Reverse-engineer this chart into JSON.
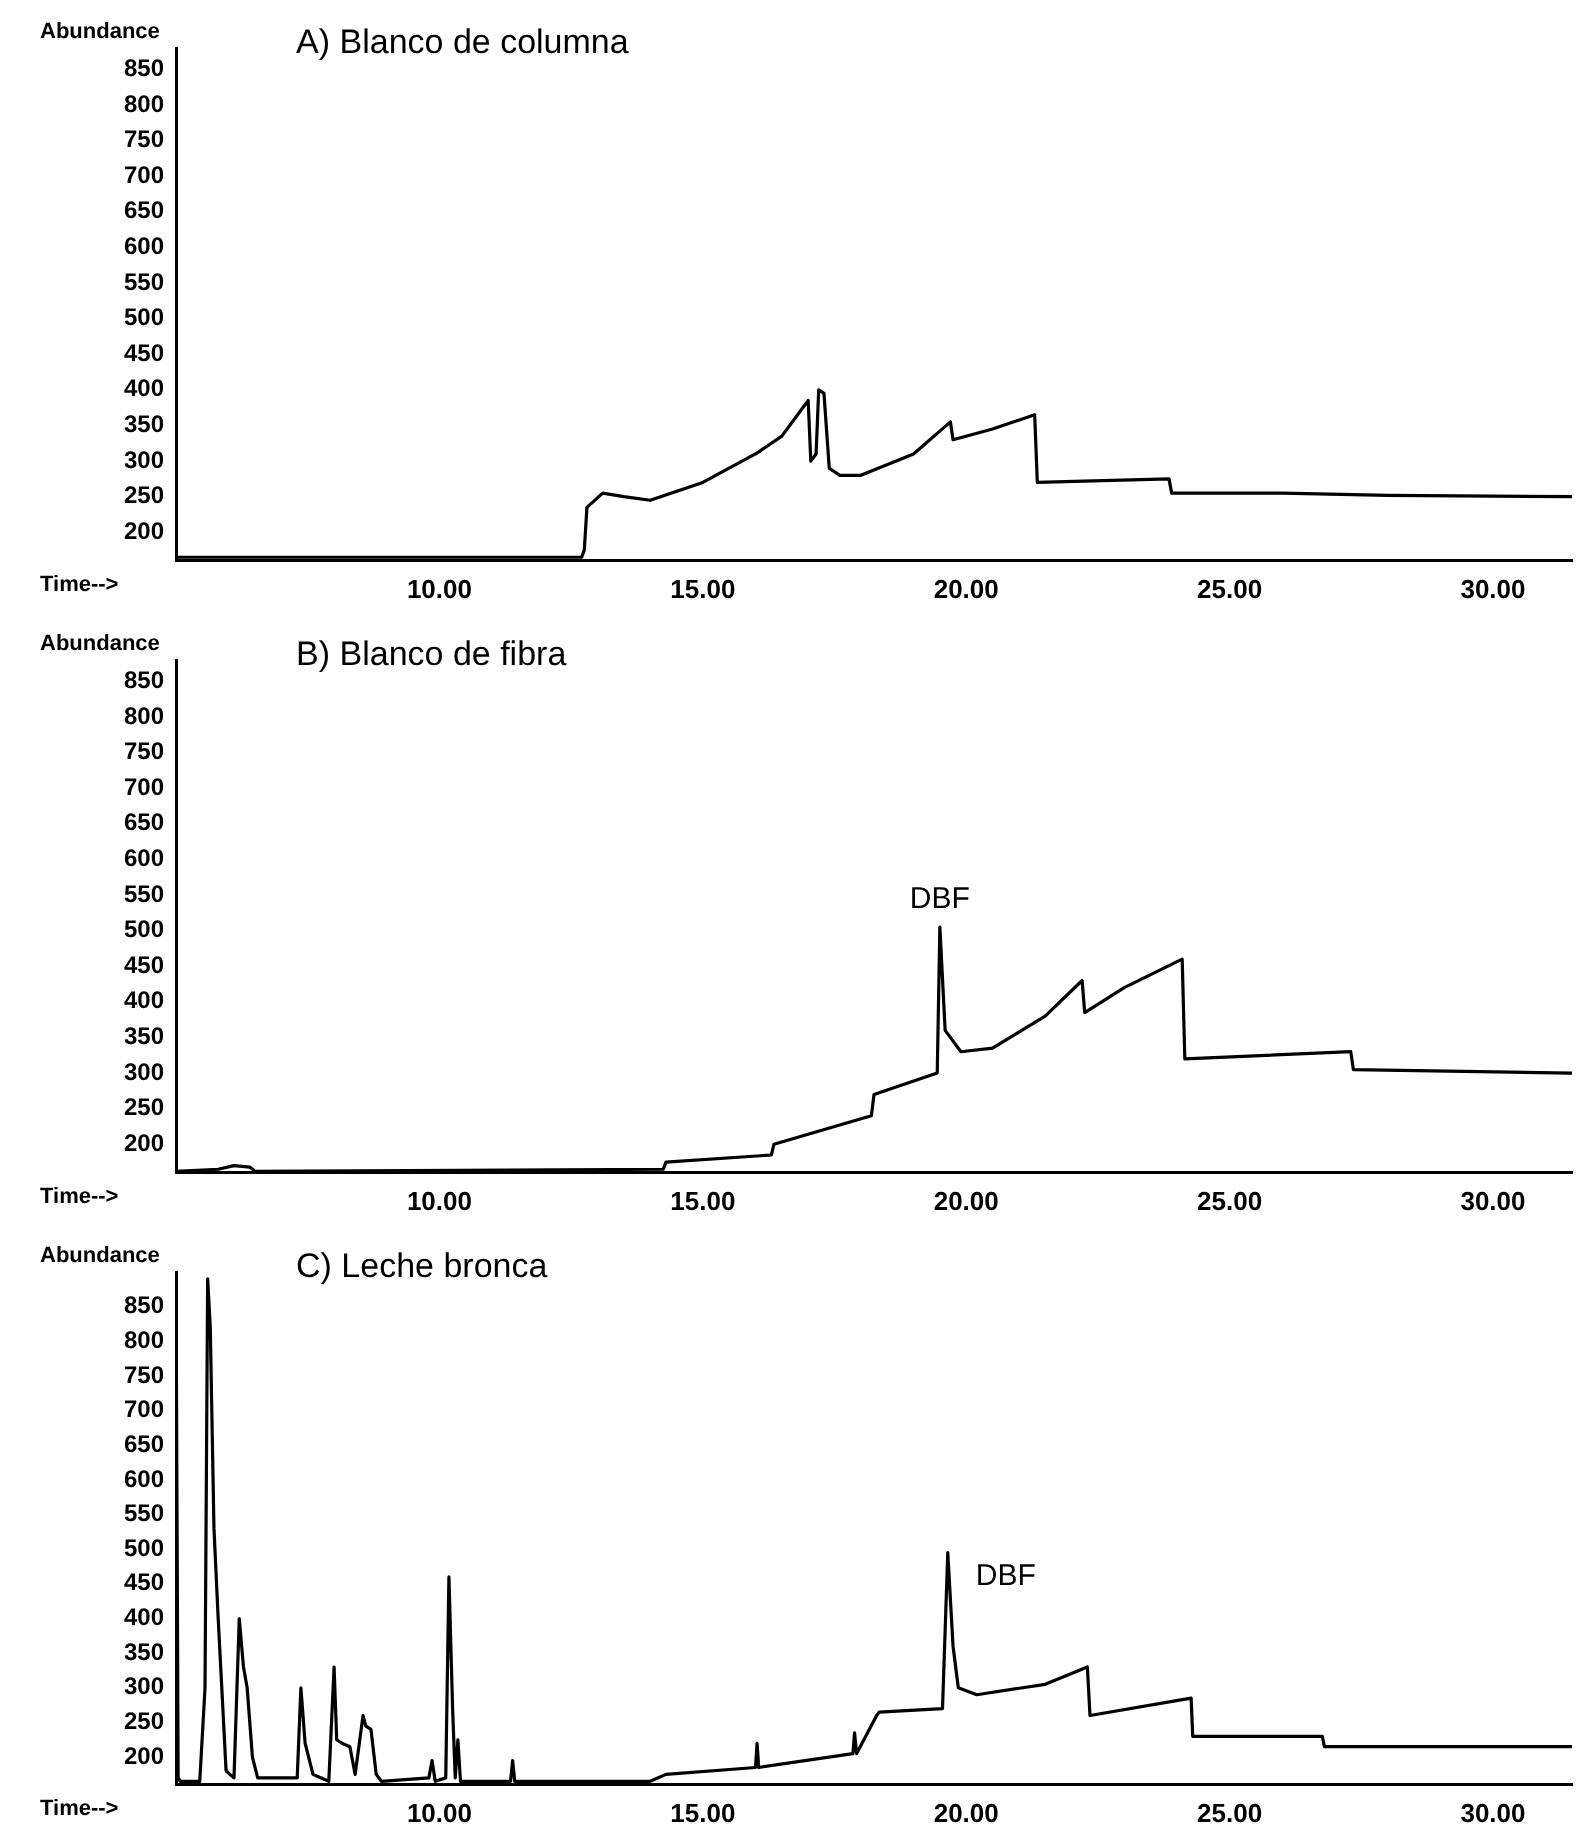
{
  "chart_data": [
    {
      "type": "line",
      "title": "A) Blanco de columna",
      "xlabel": "Time-->",
      "ylabel": "Abundance",
      "xlim": [
        5,
        31.5
      ],
      "ylim": [
        160,
        880
      ],
      "xticks": [
        {
          "value": 10,
          "label": "10.00"
        },
        {
          "value": 15,
          "label": "15.00"
        },
        {
          "value": 20,
          "label": "20.00"
        },
        {
          "value": 25,
          "label": "25.00"
        },
        {
          "value": 30,
          "label": "30.00"
        }
      ],
      "yticks": [
        200,
        250,
        300,
        350,
        400,
        450,
        500,
        550,
        600,
        650,
        700,
        750,
        800,
        850
      ],
      "grid": false,
      "legend": false,
      "marker": "none",
      "series": [
        {
          "color": "#000000",
          "x": [
            5,
            12.7,
            12.75,
            12.8,
            13.1,
            13.5,
            14,
            15,
            16,
            16.5,
            17.0,
            17.05,
            17.15,
            17.2,
            17.3,
            17.4,
            17.6,
            18,
            19,
            19.7,
            19.75,
            20.5,
            21.3,
            21.35,
            23.85,
            23.9,
            26,
            28,
            31.5
          ],
          "values": [
            165,
            165,
            175,
            235,
            255,
            250,
            245,
            270,
            310,
            335,
            385,
            300,
            310,
            400,
            395,
            290,
            280,
            280,
            310,
            355,
            330,
            345,
            365,
            270,
            275,
            255,
            255,
            252,
            250
          ]
        }
      ]
    },
    {
      "type": "line",
      "title": "B) Blanco de fibra",
      "xlabel": "Time-->",
      "ylabel": "Abundance",
      "xlim": [
        5,
        31.5
      ],
      "ylim": [
        160,
        880
      ],
      "xticks": [
        {
          "value": 10,
          "label": "10.00"
        },
        {
          "value": 15,
          "label": "15.00"
        },
        {
          "value": 20,
          "label": "20.00"
        },
        {
          "value": 25,
          "label": "25.00"
        },
        {
          "value": 30,
          "label": "30.00"
        }
      ],
      "yticks": [
        200,
        250,
        300,
        350,
        400,
        450,
        500,
        550,
        600,
        650,
        700,
        750,
        800,
        850
      ],
      "grid": false,
      "legend": false,
      "marker": "none",
      "annotations": [
        {
          "text": "DBF",
          "x": 19.5,
          "y": 505
        }
      ],
      "series": [
        {
          "color": "#000000",
          "x": [
            5,
            5.8,
            6.1,
            6.4,
            6.5,
            14.25,
            14.3,
            16.3,
            16.35,
            18.2,
            18.25,
            19.45,
            19.5,
            19.6,
            19.9,
            20.5,
            21.5,
            22.2,
            22.25,
            23,
            24.1,
            24.15,
            27.3,
            27.35,
            31.5
          ],
          "values": [
            162,
            165,
            170,
            168,
            162,
            165,
            175,
            185,
            200,
            240,
            270,
            300,
            505,
            360,
            330,
            335,
            380,
            430,
            385,
            420,
            460,
            320,
            330,
            305,
            300
          ]
        }
      ]
    },
    {
      "type": "line",
      "title": "C) Leche bronca",
      "xlabel": "Time-->",
      "ylabel": "Abundance",
      "xlim": [
        5,
        31.5
      ],
      "ylim": [
        160,
        900
      ],
      "xticks": [
        {
          "value": 10,
          "label": "10.00"
        },
        {
          "value": 15,
          "label": "15.00"
        },
        {
          "value": 20,
          "label": "20.00"
        },
        {
          "value": 25,
          "label": "25.00"
        },
        {
          "value": 30,
          "label": "30.00"
        }
      ],
      "yticks": [
        200,
        250,
        300,
        350,
        400,
        450,
        500,
        550,
        600,
        650,
        700,
        750,
        800,
        850
      ],
      "grid": false,
      "legend": false,
      "marker": "none",
      "annotations": [
        {
          "text": "DBF",
          "x": 19.65,
          "y": 495
        }
      ],
      "series": [
        {
          "color": "#000000",
          "x": [
            5,
            5.04,
            5.08,
            5.2,
            5.45,
            5.55,
            5.6,
            5.65,
            5.72,
            5.8,
            5.95,
            6.1,
            6.2,
            6.28,
            6.35,
            6.45,
            6.55,
            7.3,
            7.37,
            7.45,
            7.6,
            7.9,
            8.0,
            8.05,
            8.15,
            8.3,
            8.4,
            8.55,
            8.6,
            8.7,
            8.8,
            8.9,
            9.8,
            9.86,
            9.92,
            10.12,
            10.18,
            10.25,
            10.3,
            10.35,
            10.4,
            11.35,
            11.39,
            11.43,
            14.0,
            14.3,
            16.0,
            16.03,
            16.06,
            17.85,
            17.88,
            17.92,
            18.3,
            18.35,
            19.55,
            19.65,
            19.75,
            19.85,
            20.2,
            21.5,
            22.3,
            22.35,
            24.27,
            24.3,
            26.76,
            26.8,
            31.5
          ],
          "values": [
            880,
            170,
            165,
            165,
            165,
            300,
            890,
            820,
            530,
            400,
            180,
            170,
            400,
            330,
            300,
            200,
            170,
            170,
            300,
            220,
            175,
            165,
            330,
            225,
            220,
            215,
            175,
            260,
            245,
            240,
            175,
            165,
            170,
            195,
            165,
            170,
            460,
            270,
            170,
            225,
            165,
            165,
            195,
            165,
            165,
            175,
            185,
            220,
            185,
            205,
            235,
            205,
            260,
            265,
            270,
            495,
            360,
            300,
            290,
            305,
            330,
            260,
            285,
            230,
            230,
            215,
            215
          ]
        }
      ]
    }
  ]
}
